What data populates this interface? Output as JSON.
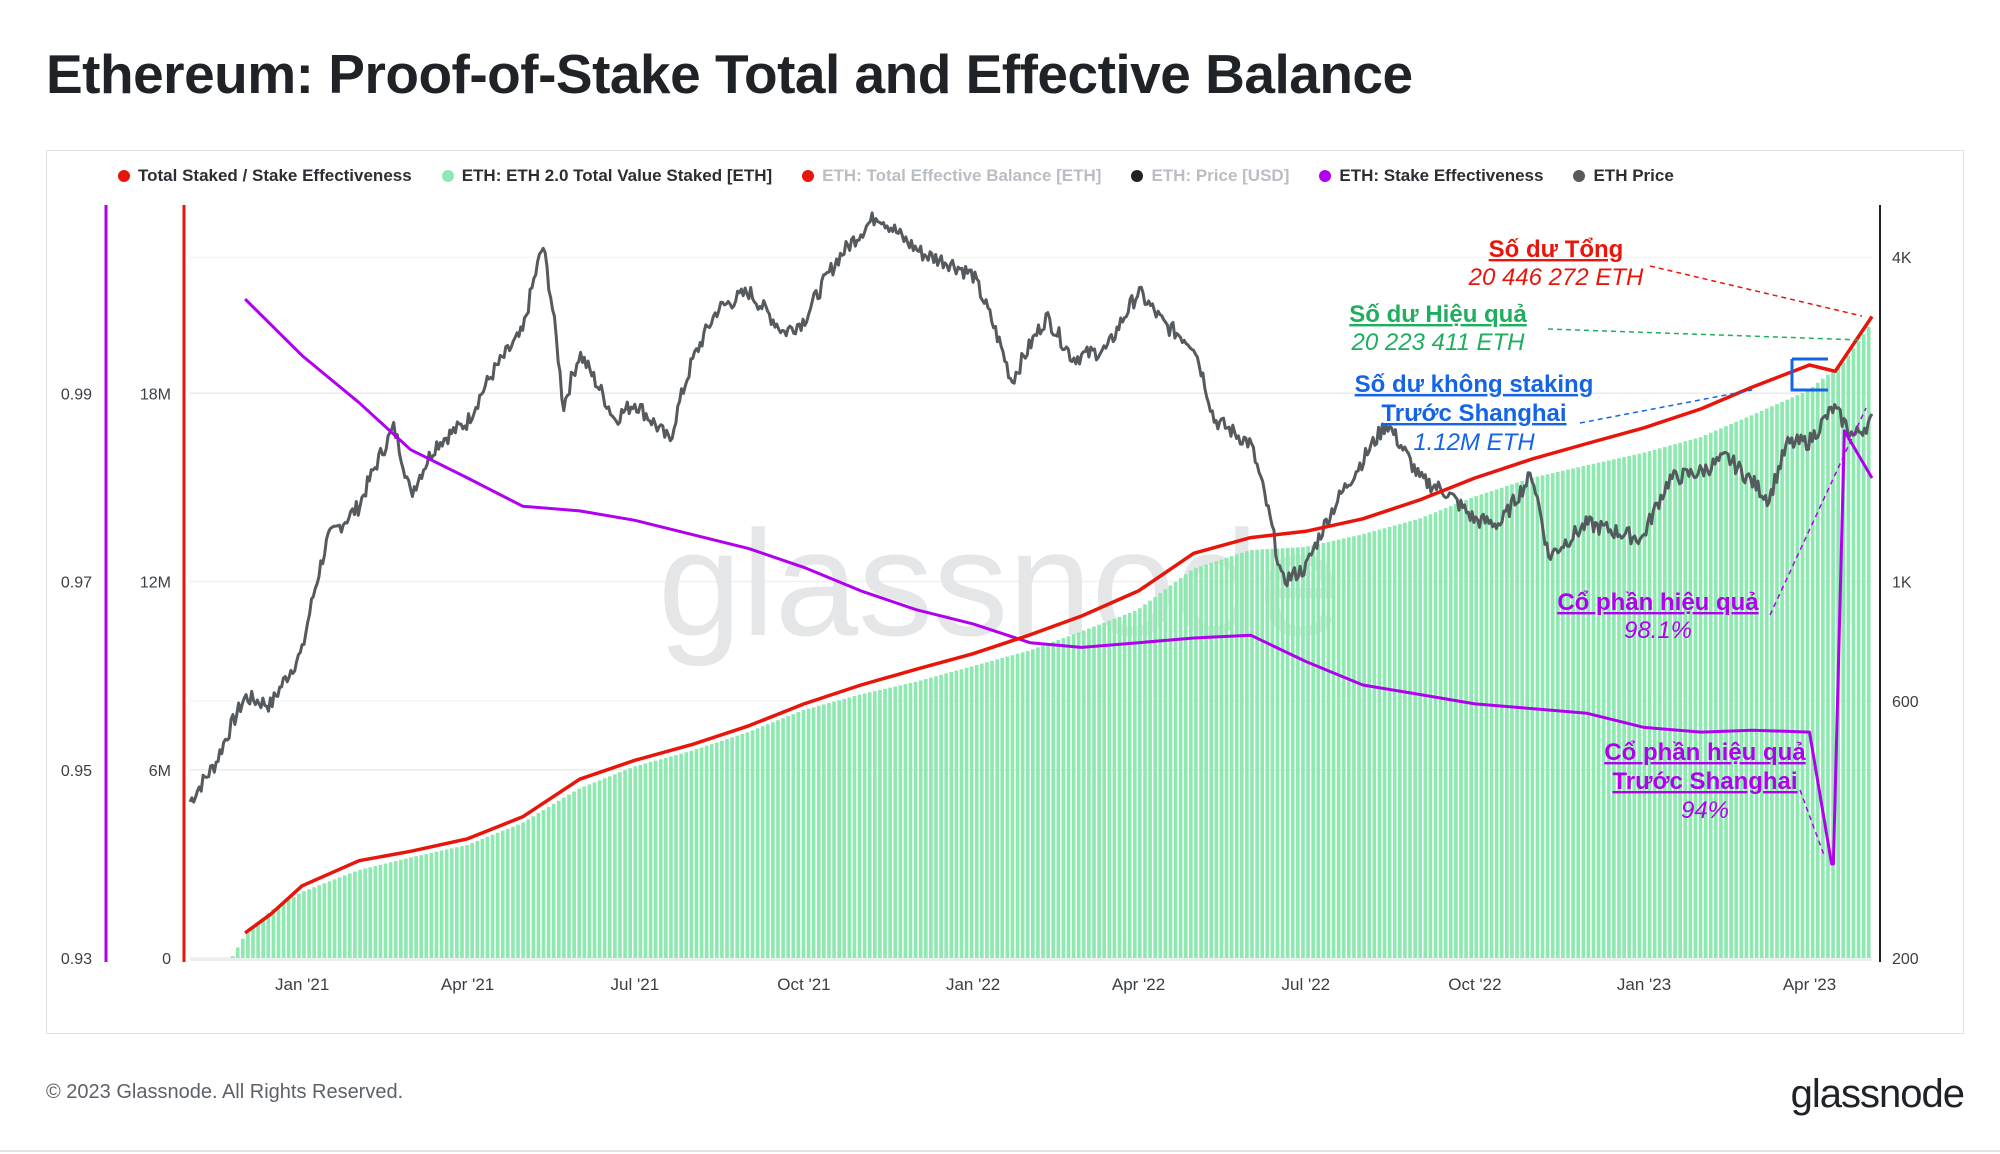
{
  "title": "Ethereum: Proof-of-Stake Total and Effective Balance",
  "legend": [
    {
      "label": "Total Staked / Stake Effectiveness",
      "color": "#e8150b",
      "muted": false
    },
    {
      "label": "ETH: ETH 2.0 Total Value Staked [ETH]",
      "color": "#8de9b0",
      "muted": false
    },
    {
      "label": "ETH: Total Effective Balance [ETH]",
      "color": "#e8150b",
      "muted": true
    },
    {
      "label": "ETH: Price [USD]",
      "color": "#1f2226",
      "muted": true
    },
    {
      "label": "ETH: Stake Effectiveness",
      "color": "#b100f0",
      "muted": false
    },
    {
      "label": "ETH Price",
      "color": "#555a5e",
      "muted": false
    }
  ],
  "footer": "© 2023 Glassnode. All Rights Reserved.",
  "brand": "glassnode",
  "watermark": "glassnode",
  "colors": {
    "total": "#e8150b",
    "staked_fill": "#8de9b0",
    "effectiveness": "#b100f0",
    "price": "#555a5e",
    "annot_green": "#1fae5e",
    "annot_blue": "#1464e6",
    "axis_text": "#3a3f44",
    "grid": "#e9ebee"
  },
  "annotations": {
    "total_title": "Số dư Tổng",
    "total_value": "20 446 272 ETH",
    "effective_title": "Số dư Hiệu quả",
    "effective_value": "20 223 411 ETH",
    "unstaked_title_1": "Số dư không staking",
    "unstaked_title_2": "Trước Shanghai",
    "unstaked_value": "1.12M ETH",
    "eff_share_title": "Cổ phần hiệu quả",
    "eff_share_value": "98.1%",
    "eff_pre_title_1": "Cổ phần hiệu quả",
    "eff_pre_title_2": "Trước Shanghai",
    "eff_pre_value": "94%"
  },
  "chart_data": {
    "type": "line",
    "x_ticks": [
      "Jan '21",
      "Apr '21",
      "Jul '21",
      "Oct '21",
      "Jan '22",
      "Apr '22",
      "Jul '22",
      "Oct '22",
      "Jan '23",
      "Apr '23"
    ],
    "x_range": [
      "2020-11-01",
      "2023-05-05"
    ],
    "y_left_effectiveness": {
      "ticks": [
        "0.99",
        "0.97",
        "0.95",
        "0.93"
      ],
      "range": [
        0.93,
        1.01
      ]
    },
    "y_left_staked": {
      "ticks": [
        "18M",
        "12M",
        "6M",
        "0"
      ],
      "range": [
        0,
        24000000
      ]
    },
    "y_right_price": {
      "ticks": [
        "4K",
        "1K",
        "600",
        "200"
      ],
      "scale": "log",
      "range": [
        200,
        5000
      ]
    },
    "grid": true,
    "legend_position": "top",
    "series": [
      {
        "name": "ETH: ETH 2.0 Total Value Staked [ETH]",
        "type": "area",
        "axis": "staked",
        "points": [
          [
            "2020-11-01",
            0
          ],
          [
            "2020-11-24",
            0
          ],
          [
            "2020-12-01",
            700000
          ],
          [
            "2020-12-15",
            1500000
          ],
          [
            "2021-01-01",
            2100000
          ],
          [
            "2021-02-01",
            2800000
          ],
          [
            "2021-03-01",
            3200000
          ],
          [
            "2021-04-01",
            3600000
          ],
          [
            "2021-05-01",
            4300000
          ],
          [
            "2021-06-01",
            5400000
          ],
          [
            "2021-07-01",
            6100000
          ],
          [
            "2021-08-01",
            6600000
          ],
          [
            "2021-09-01",
            7200000
          ],
          [
            "2021-10-01",
            7900000
          ],
          [
            "2021-11-01",
            8400000
          ],
          [
            "2021-12-01",
            8800000
          ],
          [
            "2022-01-01",
            9300000
          ],
          [
            "2022-02-01",
            9800000
          ],
          [
            "2022-03-01",
            10400000
          ],
          [
            "2022-04-01",
            11100000
          ],
          [
            "2022-05-01",
            12400000
          ],
          [
            "2022-06-01",
            13000000
          ],
          [
            "2022-07-01",
            13100000
          ],
          [
            "2022-08-01",
            13500000
          ],
          [
            "2022-09-01",
            14000000
          ],
          [
            "2022-10-01",
            14700000
          ],
          [
            "2022-11-01",
            15300000
          ],
          [
            "2022-12-01",
            15700000
          ],
          [
            "2023-01-01",
            16100000
          ],
          [
            "2023-02-01",
            16600000
          ],
          [
            "2023-03-01",
            17300000
          ],
          [
            "2023-04-01",
            18100000
          ],
          [
            "2023-04-20",
            19000000
          ],
          [
            "2023-05-05",
            20223411
          ]
        ]
      },
      {
        "name": "Total Staked / Stake Effectiveness",
        "type": "line",
        "axis": "staked",
        "points": [
          [
            "2020-12-01",
            800000
          ],
          [
            "2020-12-15",
            1400000
          ],
          [
            "2021-01-01",
            2300000
          ],
          [
            "2021-02-01",
            3100000
          ],
          [
            "2021-03-01",
            3400000
          ],
          [
            "2021-04-01",
            3800000
          ],
          [
            "2021-05-01",
            4500000
          ],
          [
            "2021-06-01",
            5700000
          ],
          [
            "2021-07-01",
            6300000
          ],
          [
            "2021-08-01",
            6800000
          ],
          [
            "2021-09-01",
            7400000
          ],
          [
            "2021-10-01",
            8100000
          ],
          [
            "2021-11-01",
            8700000
          ],
          [
            "2021-12-01",
            9200000
          ],
          [
            "2022-01-01",
            9700000
          ],
          [
            "2022-02-01",
            10300000
          ],
          [
            "2022-03-01",
            10900000
          ],
          [
            "2022-04-01",
            11700000
          ],
          [
            "2022-05-01",
            12900000
          ],
          [
            "2022-06-01",
            13400000
          ],
          [
            "2022-07-01",
            13600000
          ],
          [
            "2022-08-01",
            14000000
          ],
          [
            "2022-09-01",
            14600000
          ],
          [
            "2022-10-01",
            15300000
          ],
          [
            "2022-11-01",
            15900000
          ],
          [
            "2022-12-01",
            16400000
          ],
          [
            "2023-01-01",
            16900000
          ],
          [
            "2023-02-01",
            17500000
          ],
          [
            "2023-03-01",
            18200000
          ],
          [
            "2023-04-01",
            18900000
          ],
          [
            "2023-04-15",
            18700000
          ],
          [
            "2023-05-05",
            20446272
          ]
        ]
      },
      {
        "name": "ETH: Stake Effectiveness",
        "type": "line",
        "axis": "effectiveness",
        "points": [
          [
            "2020-12-01",
            1.0
          ],
          [
            "2021-01-01",
            0.994
          ],
          [
            "2021-02-01",
            0.989
          ],
          [
            "2021-03-01",
            0.984
          ],
          [
            "2021-04-01",
            0.981
          ],
          [
            "2021-05-01",
            0.978
          ],
          [
            "2021-06-01",
            0.9775
          ],
          [
            "2021-07-01",
            0.9765
          ],
          [
            "2021-08-01",
            0.975
          ],
          [
            "2021-09-01",
            0.9735
          ],
          [
            "2021-10-01",
            0.9715
          ],
          [
            "2021-11-01",
            0.969
          ],
          [
            "2021-12-01",
            0.967
          ],
          [
            "2022-01-01",
            0.9655
          ],
          [
            "2022-02-01",
            0.9635
          ],
          [
            "2022-03-01",
            0.963
          ],
          [
            "2022-04-01",
            0.9635
          ],
          [
            "2022-05-01",
            0.964
          ],
          [
            "2022-06-01",
            0.9643
          ],
          [
            "2022-07-01",
            0.9615
          ],
          [
            "2022-08-01",
            0.959
          ],
          [
            "2022-09-01",
            0.958
          ],
          [
            "2022-10-01",
            0.957
          ],
          [
            "2022-11-01",
            0.9565
          ],
          [
            "2022-12-01",
            0.956
          ],
          [
            "2023-01-01",
            0.9545
          ],
          [
            "2023-02-01",
            0.954
          ],
          [
            "2023-03-01",
            0.9542
          ],
          [
            "2023-04-01",
            0.954
          ],
          [
            "2023-04-13",
            0.94
          ],
          [
            "2023-04-14",
            0.94
          ],
          [
            "2023-04-20",
            0.986
          ],
          [
            "2023-05-05",
            0.981
          ]
        ]
      },
      {
        "name": "ETH Price",
        "type": "line",
        "axis": "price",
        "points": [
          [
            "2020-11-01",
            390
          ],
          [
            "2020-11-15",
            460
          ],
          [
            "2020-12-01",
            610
          ],
          [
            "2020-12-15",
            590
          ],
          [
            "2021-01-01",
            740
          ],
          [
            "2021-01-15",
            1200
          ],
          [
            "2021-02-01",
            1380
          ],
          [
            "2021-02-20",
            1930
          ],
          [
            "2021-03-01",
            1450
          ],
          [
            "2021-03-15",
            1800
          ],
          [
            "2021-04-01",
            1980
          ],
          [
            "2021-04-15",
            2450
          ],
          [
            "2021-05-01",
            2900
          ],
          [
            "2021-05-12",
            4200
          ],
          [
            "2021-05-23",
            2100
          ],
          [
            "2021-06-01",
            2650
          ],
          [
            "2021-06-20",
            2000
          ],
          [
            "2021-07-01",
            2150
          ],
          [
            "2021-07-20",
            1820
          ],
          [
            "2021-08-01",
            2550
          ],
          [
            "2021-08-15",
            3200
          ],
          [
            "2021-09-01",
            3450
          ],
          [
            "2021-09-20",
            2900
          ],
          [
            "2021-10-01",
            3050
          ],
          [
            "2021-10-20",
            4000
          ],
          [
            "2021-11-10",
            4800
          ],
          [
            "2021-11-25",
            4300
          ],
          [
            "2021-12-05",
            4050
          ],
          [
            "2021-12-20",
            3900
          ],
          [
            "2022-01-01",
            3700
          ],
          [
            "2022-01-22",
            2350
          ],
          [
            "2022-02-10",
            3100
          ],
          [
            "2022-02-24",
            2600
          ],
          [
            "2022-03-15",
            2700
          ],
          [
            "2022-04-01",
            3450
          ],
          [
            "2022-04-15",
            3000
          ],
          [
            "2022-05-01",
            2750
          ],
          [
            "2022-05-12",
            2000
          ],
          [
            "2022-06-01",
            1800
          ],
          [
            "2022-06-18",
            1000
          ],
          [
            "2022-07-01",
            1060
          ],
          [
            "2022-07-15",
            1350
          ],
          [
            "2022-08-01",
            1680
          ],
          [
            "2022-08-14",
            1970
          ],
          [
            "2022-09-01",
            1550
          ],
          [
            "2022-09-15",
            1470
          ],
          [
            "2022-10-01",
            1300
          ],
          [
            "2022-10-15",
            1280
          ],
          [
            "2022-11-01",
            1580
          ],
          [
            "2022-11-10",
            1110
          ],
          [
            "2022-12-01",
            1280
          ],
          [
            "2022-12-31",
            1200
          ],
          [
            "2023-01-15",
            1550
          ],
          [
            "2023-02-01",
            1600
          ],
          [
            "2023-02-15",
            1700
          ],
          [
            "2023-03-10",
            1420
          ],
          [
            "2023-03-20",
            1800
          ],
          [
            "2023-04-01",
            1820
          ],
          [
            "2023-04-14",
            2100
          ],
          [
            "2023-04-25",
            1860
          ],
          [
            "2023-05-05",
            1990
          ]
        ]
      }
    ]
  }
}
